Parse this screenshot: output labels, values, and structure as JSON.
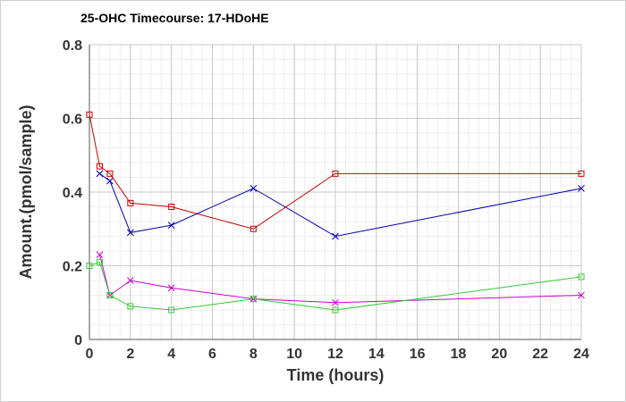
{
  "chart_data": {
    "type": "line",
    "title": "25-OHC Timecourse: 17-HDoHE",
    "xlabel": "Time (hours)",
    "ylabel": "Amount.(pmol/sample)",
    "xlim": [
      0,
      24
    ],
    "ylim": [
      0,
      0.8
    ],
    "xticks": [
      0,
      2,
      4,
      6,
      8,
      10,
      12,
      14,
      16,
      18,
      20,
      22,
      24
    ],
    "yticks": [
      0,
      0.2,
      0.4,
      0.6,
      0.8
    ],
    "ytick_labels": [
      "0",
      "0.2",
      "0.4",
      "0.6",
      "0.8"
    ],
    "grid": true,
    "legend": "none",
    "series": [
      {
        "color": "#cc0000",
        "marker": "square",
        "x": [
          0,
          0.5,
          1,
          2,
          4,
          8,
          12,
          24
        ],
        "y": [
          0.61,
          0.47,
          0.45,
          0.37,
          0.36,
          0.3,
          0.45,
          0.45
        ]
      },
      {
        "color": "#0000aa",
        "marker": "x",
        "x": [
          0.5,
          1,
          2,
          4,
          8,
          12,
          24
        ],
        "y": [
          0.45,
          0.43,
          0.29,
          0.31,
          0.41,
          0.28,
          0.41
        ]
      },
      {
        "color": "#cc00cc",
        "marker": "x",
        "x": [
          0.5,
          1,
          2,
          4,
          8,
          12,
          24
        ],
        "y": [
          0.23,
          0.12,
          0.16,
          0.14,
          0.11,
          0.1,
          0.12
        ]
      },
      {
        "color": "#33cc33",
        "marker": "square",
        "x": [
          0,
          0.5,
          1,
          2,
          4,
          8,
          12,
          24
        ],
        "y": [
          0.2,
          0.21,
          0.12,
          0.09,
          0.08,
          0.11,
          0.08,
          0.17
        ]
      }
    ]
  }
}
